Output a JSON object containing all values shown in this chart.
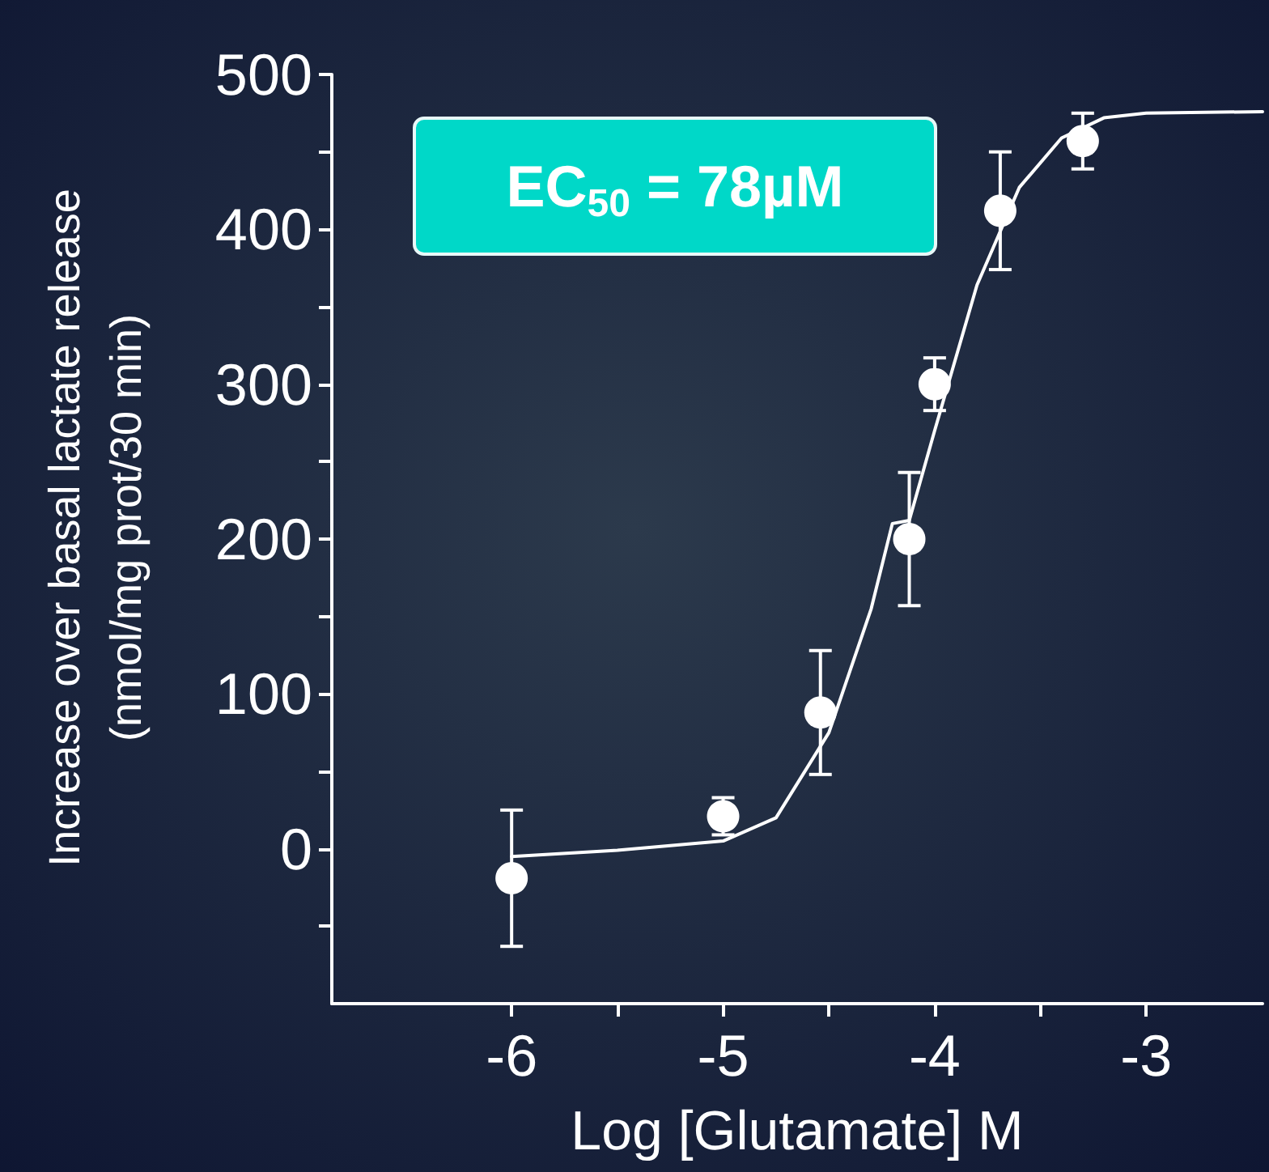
{
  "chart_data": {
    "type": "scatter",
    "xlabel": "Log [Glutamate] M",
    "ylabel": "Increase over basal lactate release\n(nmol/mg prot/30 min)",
    "annotations": [
      "EC$_{50}$ = 78µM"
    ],
    "xlim": [
      -6.85,
      -2.45
    ],
    "xticks": [
      -6,
      {
        "value": -5.5,
        "label": null
      },
      -5,
      {
        "value": -4.5,
        "label": null
      },
      -4,
      {
        "value": -3.5,
        "label": null
      },
      -3
    ],
    "ylim": [
      -100,
      500
    ],
    "yticks": [
      {
        "value": -50,
        "label": null
      },
      0,
      {
        "value": 50,
        "label": null
      },
      100,
      {
        "value": 150,
        "label": null
      },
      200,
      {
        "value": 250,
        "label": null
      },
      300,
      {
        "value": 350,
        "label": null
      },
      400,
      {
        "value": 450,
        "label": null
      },
      500
    ],
    "grid": false,
    "marker": "circle",
    "series": [
      {
        "color": "#ffffff",
        "x": [
          -6,
          -5,
          -4.54,
          -4.12,
          -4.0,
          -3.69,
          -3.3
        ],
        "values": [
          -19,
          21,
          88,
          200,
          300,
          412,
          457
        ],
        "errors": [
          44,
          12,
          40,
          43,
          17,
          38,
          18
        ]
      },
      {
        "type": "line",
        "color": "#ffffff",
        "marker": "none",
        "x": [
          -6,
          -5.5,
          -5,
          -4.75,
          -4.5,
          -4.3,
          -4.2,
          -4.12,
          -4.0,
          -3.8,
          -3.6,
          -3.4,
          -3.2,
          -3.0,
          -2.45
        ],
        "values": [
          -5,
          -1,
          5,
          20,
          75,
          155,
          210,
          212,
          270,
          364,
          427,
          459,
          472,
          475,
          476
        ]
      }
    ]
  }
}
